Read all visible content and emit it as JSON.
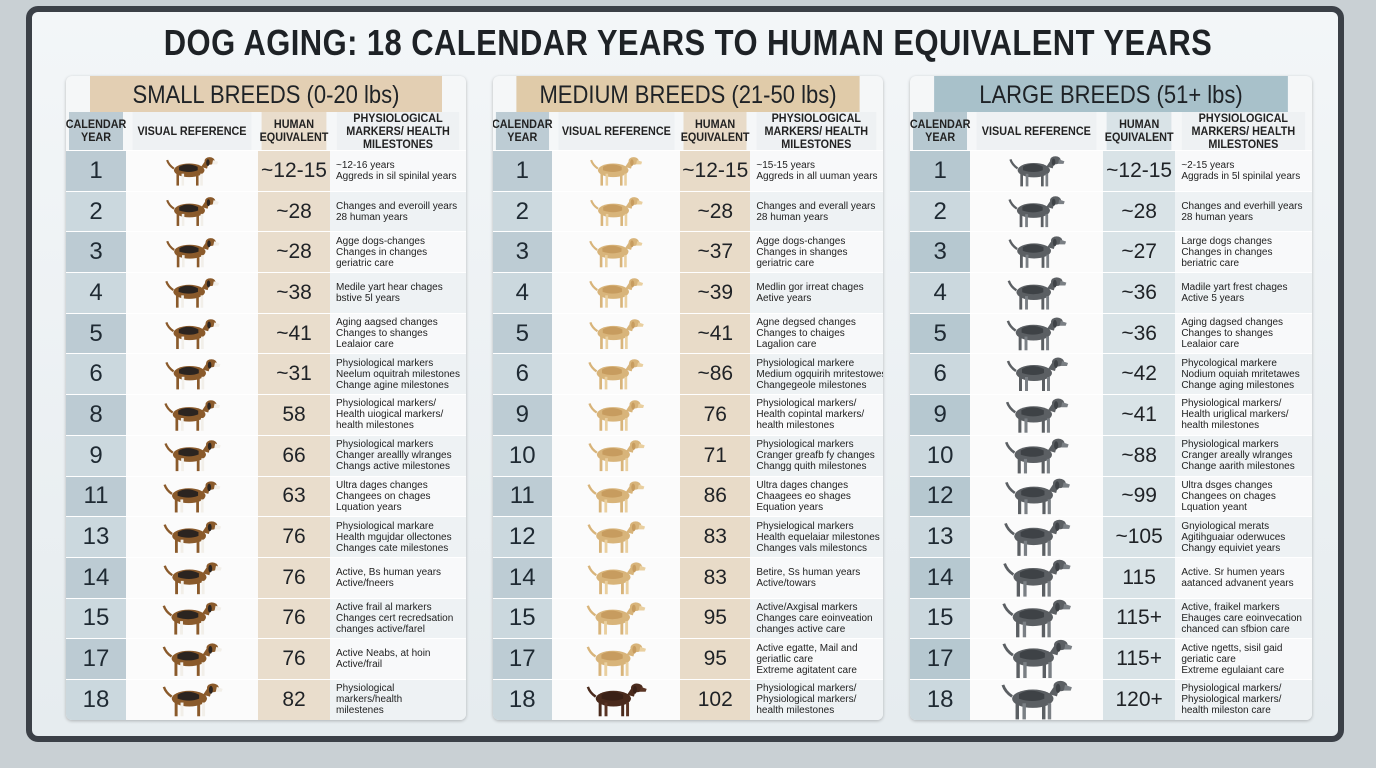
{
  "title": "DOG AGING: 18 CALENDAR YEARS TO HUMAN EQUIVALENT YEARS",
  "panels": [
    {
      "title": "SMALL BREEDS (0-20 lbs)",
      "columns": [
        "CALENDAR YEAR",
        "VISUAL REFERENCE",
        "HUMAN EQUIVALENT",
        "PHYSIOLOGICAL MARKERS/ HEALTH MILESTONES"
      ],
      "rows": [
        {
          "year": "1",
          "human": "~12-15",
          "markers": [
            "~12-16 years",
            "Aggreds in sil spinilal years"
          ]
        },
        {
          "year": "2",
          "human": "~28",
          "markers": [
            "Changes and everoill years",
            "28 human years"
          ]
        },
        {
          "year": "3",
          "human": "~28",
          "markers": [
            "Agge dogs-changes",
            "Changes in changes",
            "geriatric care"
          ]
        },
        {
          "year": "4",
          "human": "~38",
          "markers": [
            "Medile yart hear chages",
            "bstive 5l years"
          ]
        },
        {
          "year": "5",
          "human": "~41",
          "markers": [
            "Aging aagsed changes",
            "Changes to shanges",
            "Lealaior care"
          ]
        },
        {
          "year": "6",
          "human": "~31",
          "markers": [
            "Physiological markers",
            "Neelum oquitrah milestones",
            "Change agine milestones"
          ]
        },
        {
          "year": "8",
          "human": "58",
          "markers": [
            "Physiological markers/",
            "Health uiogical markers/",
            "health milestones"
          ]
        },
        {
          "year": "9",
          "human": "66",
          "markers": [
            "Physiological markers",
            "Changer areallly wlranges",
            "Changs active milestones"
          ]
        },
        {
          "year": "11",
          "human": "63",
          "markers": [
            "Ultra dages changes",
            "Changees on chages",
            "Lquation years"
          ]
        },
        {
          "year": "13",
          "human": "76",
          "markers": [
            "Physiological markare",
            "Health mgujdar ollectones",
            "Changes cate milestones"
          ]
        },
        {
          "year": "14",
          "human": "76",
          "markers": [
            "Active, Bs human years",
            "Active/fneers"
          ]
        },
        {
          "year": "15",
          "human": "76",
          "markers": [
            "Active frail al markers",
            "Changes cert recredsation",
            "changes active/farel"
          ]
        },
        {
          "year": "17",
          "human": "76",
          "markers": [
            "Active Neabs, at hoin",
            "Active/frail"
          ]
        },
        {
          "year": "18",
          "human": "82",
          "markers": [
            "Physiological",
            "markers/health",
            "milestenes"
          ]
        }
      ]
    },
    {
      "title": "MEDIUM BREEDS (21-50 lbs)",
      "columns": [
        "CALENDAR YEAR",
        "VISUAL REFERENCE",
        "HUMAN EQUIVALENT",
        "PHYSIOLOGICAL MARKERS/ HEALTH MILESTONES"
      ],
      "rows": [
        {
          "year": "1",
          "human": "~12-15",
          "markers": [
            "~15-15 years",
            "Aggreds in all uuman years"
          ]
        },
        {
          "year": "2",
          "human": "~28",
          "markers": [
            "Changes and everall years",
            "28 human years"
          ]
        },
        {
          "year": "3",
          "human": "~37",
          "markers": [
            "Agge dogs-changes",
            "Changes in shanges",
            "geriatric care"
          ]
        },
        {
          "year": "4",
          "human": "~39",
          "markers": [
            "Medlin gor irreat chages",
            "Aetive years"
          ]
        },
        {
          "year": "5",
          "human": "~41",
          "markers": [
            "Agne degsed changes",
            "Changes to chaiges",
            "Lagalion care"
          ]
        },
        {
          "year": "6",
          "human": "~86",
          "markers": [
            "Physiological markere",
            "Medium ogquirih mritestowes",
            "Changegeole milestones"
          ]
        },
        {
          "year": "9",
          "human": "76",
          "markers": [
            "Physiological markers/",
            "Health copintal markers/",
            "health milestones"
          ]
        },
        {
          "year": "10",
          "human": "71",
          "markers": [
            "Physiological markers",
            "Cranger greafb fy changes",
            "Changg quith milestones"
          ]
        },
        {
          "year": "11",
          "human": "86",
          "markers": [
            "Ultra dages changes",
            "Chaagees eo shages",
            "Equation years"
          ]
        },
        {
          "year": "12",
          "human": "83",
          "markers": [
            "Physielogical markers",
            "Health equelaiar milestones",
            "Changes vals milestoncs"
          ]
        },
        {
          "year": "14",
          "human": "83",
          "markers": [
            "Betire, Ss human years",
            "Active/towars"
          ]
        },
        {
          "year": "15",
          "human": "95",
          "markers": [
            "Active/Axgisal markers",
            "Changes care eoinveation",
            "changes active care"
          ]
        },
        {
          "year": "17",
          "human": "95",
          "markers": [
            "Active egatte, Mail and",
            "geriatlic care",
            "Extreme agitatent care"
          ]
        },
        {
          "year": "18",
          "human": "102",
          "markers": [
            "Physiological markers/",
            "Physiological markers/",
            "health milestones"
          ]
        }
      ]
    },
    {
      "title": "LARGE BREEDS (51+ lbs)",
      "columns": [
        "CALENDAR YEAR",
        "VISUAL REFERENCE",
        "HUMAN EQUIVALENT",
        "PHYSIOLOGICAL MARKERS/ HEALTH MILESTONES"
      ],
      "rows": [
        {
          "year": "1",
          "human": "~12-15",
          "markers": [
            "~2-15 years",
            "Aggrads in 5l spinilal years"
          ]
        },
        {
          "year": "2",
          "human": "~28",
          "markers": [
            "Changes and everhill years",
            "28 human years"
          ]
        },
        {
          "year": "3",
          "human": "~27",
          "markers": [
            "Large dogs changes",
            "Changes in changes",
            "beriatric care"
          ]
        },
        {
          "year": "4",
          "human": "~36",
          "markers": [
            "Madile yart frest chages",
            "Active 5 years"
          ]
        },
        {
          "year": "5",
          "human": "~36",
          "markers": [
            "Aging dagsed changes",
            "Changes to shanges",
            "Lealaior care"
          ]
        },
        {
          "year": "6",
          "human": "~42",
          "markers": [
            "Phycological markere",
            "Nodium oquiah mritetawes",
            "Change aging milestones"
          ]
        },
        {
          "year": "9",
          "human": "~41",
          "markers": [
            "Physiological markers/",
            "Health uriglical markers/",
            "health milestones"
          ]
        },
        {
          "year": "10",
          "human": "~88",
          "markers": [
            "Physiological markers",
            "Cranger areally wlranges",
            "Change aarith milestones"
          ]
        },
        {
          "year": "12",
          "human": "~99",
          "markers": [
            "Ultra dsges changes",
            "Changees on chages",
            "Lquation yeant"
          ]
        },
        {
          "year": "13",
          "human": "~105",
          "markers": [
            "Gnyiological merats",
            "Agitihguaiar oderwuces",
            "Changy equiviet years"
          ]
        },
        {
          "year": "14",
          "human": "115",
          "markers": [
            "Active. Sr humen years",
            "aatanced advanent years"
          ]
        },
        {
          "year": "15",
          "human": "115+",
          "markers": [
            "Active, fraikel markers",
            "Ehauges care eoinvecation",
            "chanced can sfbion care"
          ]
        },
        {
          "year": "17",
          "human": "115+",
          "markers": [
            "Active ngetts, sisil gaid",
            "geriatic care",
            "Extreme egulaiant care"
          ]
        },
        {
          "year": "18",
          "human": "120+",
          "markers": [
            "Physiological markers/",
            "Physiological markers/",
            "health mileston care"
          ]
        }
      ]
    }
  ]
}
